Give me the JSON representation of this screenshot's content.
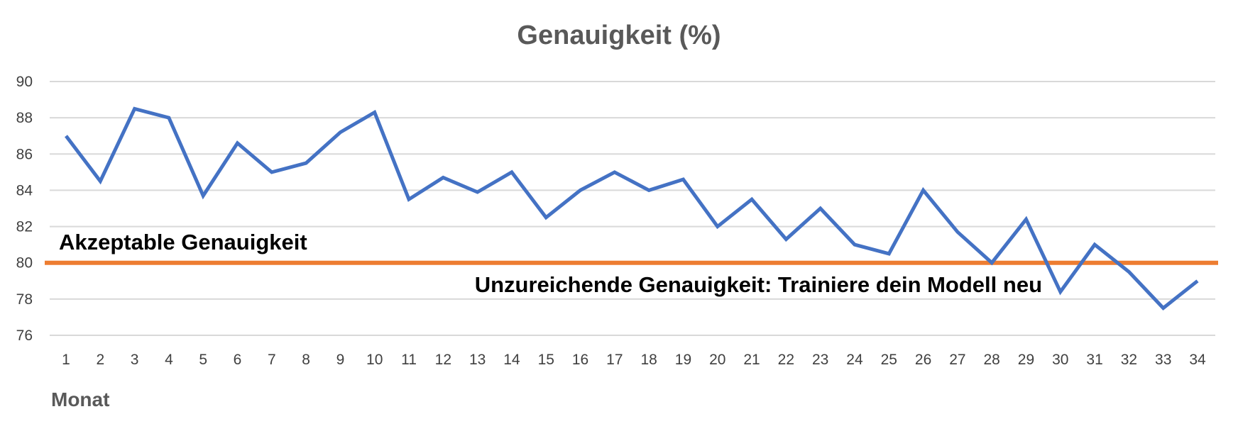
{
  "chart_data": {
    "type": "line",
    "title": "Genauigkeit (%)",
    "xlabel": "Monat",
    "ylabel": "",
    "ylim": [
      76,
      90
    ],
    "yticks": [
      90,
      88,
      86,
      84,
      82,
      80,
      78,
      76
    ],
    "grid": true,
    "legend": "none",
    "categories": [
      1,
      2,
      3,
      4,
      5,
      6,
      7,
      8,
      9,
      10,
      11,
      12,
      13,
      14,
      15,
      16,
      17,
      18,
      19,
      20,
      21,
      22,
      23,
      24,
      25,
      26,
      27,
      28,
      29,
      30,
      31,
      32,
      33,
      34
    ],
    "series": [
      {
        "name": "Genauigkeit",
        "color": "#4472c4",
        "values": [
          87,
          84.5,
          88.5,
          88,
          83.7,
          86.6,
          85,
          85.5,
          87.2,
          88.3,
          83.5,
          84.7,
          83.9,
          85,
          82.5,
          84,
          85,
          84,
          84.6,
          82,
          83.5,
          81.3,
          83,
          81,
          80.5,
          84,
          81.7,
          80,
          82.4,
          78.4,
          81,
          79.5,
          77.5,
          79
        ]
      }
    ],
    "threshold": {
      "value": 80,
      "color": "#ed7d31"
    },
    "annotations": [
      {
        "text": "Akzeptable Genauigkeit",
        "position": "above threshold, left"
      },
      {
        "text": "Unzureichende Genauigkeit: Trainiere dein Modell neu",
        "position": "below threshold, center-right"
      }
    ]
  }
}
